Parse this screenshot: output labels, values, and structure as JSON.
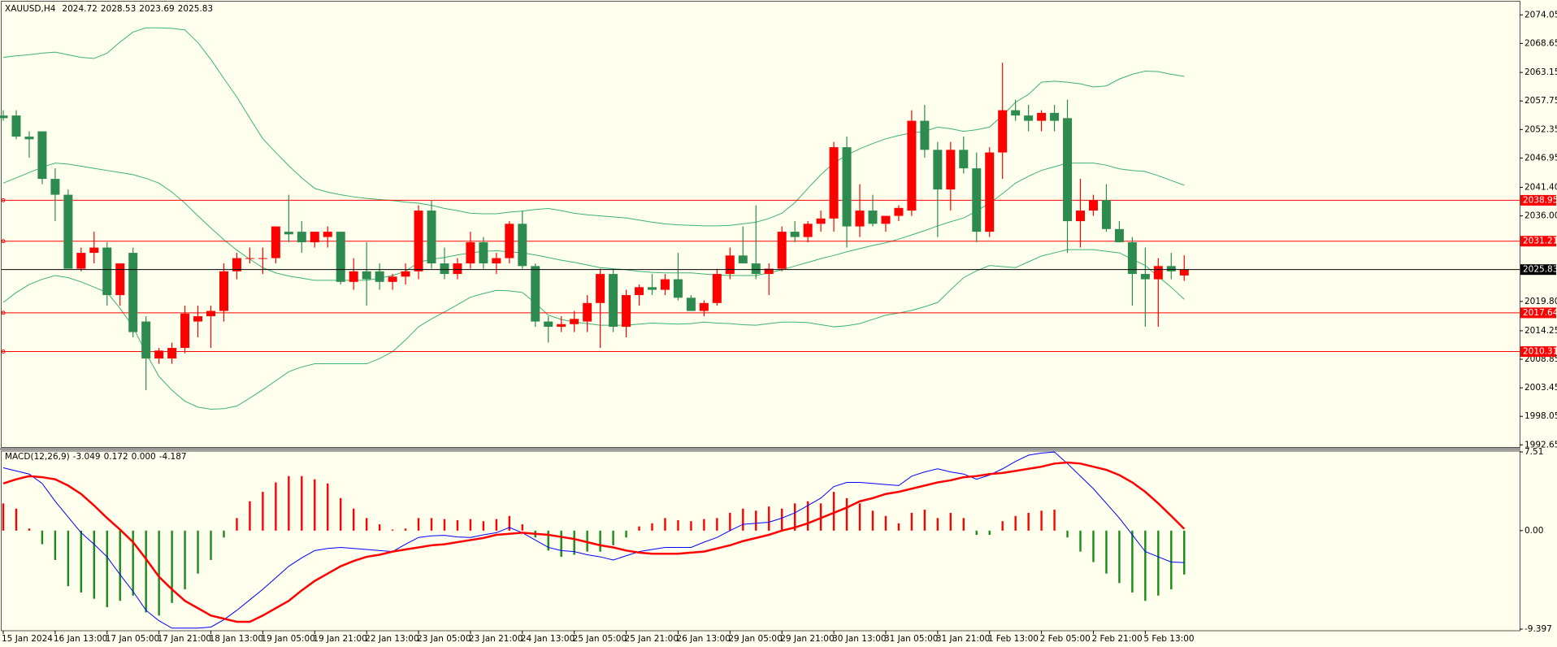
{
  "chart_data": [
    {
      "type": "candlestick",
      "title": "XAUUSD,H4",
      "categories": [
        "15 Jan 2024",
        null,
        null,
        null,
        "16 Jan 13:00",
        null,
        null,
        null,
        "17 Jan 05:00",
        null,
        null,
        null,
        "17 Jan 21:00",
        null,
        null,
        null,
        "18 Jan 13:00",
        null,
        null,
        null,
        "19 Jan 05:00",
        null,
        null,
        null,
        "19 Jan 21:00",
        null,
        null,
        null,
        "22 Jan 13:00",
        null,
        null,
        null,
        "23 Jan 05:00",
        null,
        null,
        null,
        "23 Jan 21:00",
        null,
        null,
        null,
        "24 Jan 13:00",
        null,
        null,
        null,
        "25 Jan 05:00",
        null,
        null,
        null,
        "25 Jan 21:00",
        null,
        null,
        null,
        "26 Jan 13:00",
        null,
        null,
        null,
        "29 Jan 05:00",
        null,
        null,
        null,
        "29 Jan 21:00",
        null,
        null,
        null,
        "30 Jan 13:00",
        null,
        null,
        null,
        "31 Jan 05:00",
        null,
        null,
        null,
        "31 Jan 21:00",
        null,
        null,
        null,
        "1 Feb 13:00",
        null,
        null,
        null,
        "2 Feb 05:00",
        null,
        null,
        null,
        "2 Feb 21:00",
        null,
        null,
        null,
        "5 Feb 13:00",
        null,
        null,
        null
      ],
      "open": [
        2055,
        2055,
        2051,
        2052,
        2043,
        2040,
        2026,
        2029,
        2030,
        2021,
        2029,
        2016,
        2009,
        2009,
        2011,
        2016,
        2017,
        2018,
        2025.5,
        2028,
        2028,
        2028,
        2033,
        2033,
        2031,
        2032,
        2033,
        2023.5,
        2025.5,
        2025.5,
        2023.5,
        2024.5,
        2025.5,
        2037,
        2027,
        2025,
        2027,
        2031,
        2027,
        2028,
        2034.5,
        2026.5,
        2016,
        2015,
        2015.5,
        2016,
        2019.5,
        2025,
        2015,
        2021,
        2022.5,
        2022,
        2024,
        2020.5,
        2018,
        2019.5,
        2025,
        2028.5,
        2027,
        2025,
        2026,
        2033,
        2032,
        2034.5,
        2035.5,
        2049,
        2034,
        2037,
        2034.5,
        2036,
        2037,
        2054,
        2048.5,
        2041,
        2048.5,
        2045,
        2033,
        2048,
        2056,
        2055,
        2054,
        2055.5,
        2054.5,
        2035,
        2037,
        2039,
        2033.5,
        2031,
        2025,
        2024,
        2026.5,
        2024.72
      ],
      "high": [
        2056,
        2056,
        2052,
        2052,
        2045,
        2041,
        2030,
        2033,
        2031,
        2027,
        2030,
        2017,
        2011,
        2012,
        2019,
        2019,
        2019,
        2027,
        2029,
        2030,
        2030,
        2034,
        2040,
        2035,
        2033,
        2034,
        2033,
        2028,
        2031,
        2027,
        2025,
        2027,
        2038,
        2039,
        2030,
        2028,
        2033,
        2032,
        2029,
        2035,
        2037,
        2027,
        2017,
        2017,
        2018,
        2021,
        2026,
        2026,
        2022,
        2023,
        2025,
        2025,
        2029,
        2021,
        2020,
        2026,
        2030,
        2034,
        2038,
        2027,
        2034,
        2035,
        2035,
        2037,
        2050,
        2051,
        2042,
        2040,
        2036,
        2038,
        2056,
        2057,
        2050,
        2050,
        2051,
        2048,
        2049,
        2065,
        2058,
        2057,
        2056,
        2057,
        2058,
        2043,
        2040,
        2042,
        2035,
        2032,
        2030,
        2028,
        2029,
        2028.53
      ],
      "low": [
        2054,
        2050.5,
        2047,
        2042,
        2035,
        2026,
        2025.5,
        2027,
        2019,
        2019,
        2013,
        2003,
        2008,
        2008,
        2010,
        2013,
        2011,
        2016,
        2024,
        2027,
        2025,
        2027,
        2031,
        2029,
        2030,
        2030,
        2023,
        2022,
        2019,
        2022,
        2022,
        2023,
        2024,
        2026,
        2024,
        2024,
        2026,
        2026,
        2025,
        2027,
        2026,
        2015,
        2012,
        2014,
        2014,
        2014,
        2011,
        2014,
        2013,
        2019,
        2021,
        2021,
        2020,
        2018,
        2017,
        2019,
        2024,
        2027,
        2024,
        2021,
        2025.5,
        2031,
        2031,
        2033,
        2033,
        2030,
        2032,
        2034,
        2033,
        2035,
        2036,
        2047,
        2032,
        2037,
        2044,
        2031,
        2032,
        2043,
        2054,
        2052,
        2052,
        2052,
        2029,
        2030,
        2036,
        2033,
        2031,
        2019,
        2015,
        2015,
        2024,
        2023.69
      ],
      "close": [
        2054.5,
        2051,
        2050.5,
        2043,
        2040,
        2026,
        2029,
        2030,
        2021,
        2027,
        2014,
        2009,
        2010.5,
        2011,
        2017.5,
        2017,
        2018,
        2025.5,
        2028,
        2028,
        2028,
        2034,
        2032.5,
        2031,
        2033,
        2033,
        2023.5,
        2025.5,
        2024,
        2023.5,
        2024.5,
        2025.5,
        2037,
        2027,
        2025,
        2027,
        2031,
        2027,
        2028,
        2034.5,
        2026.5,
        2016,
        2015,
        2015.5,
        2016.5,
        2019.5,
        2025,
        2015,
        2021,
        2022.5,
        2022,
        2024,
        2020.5,
        2018,
        2019.5,
        2025,
        2028.5,
        2027,
        2025,
        2026,
        2033,
        2032,
        2034.5,
        2035.5,
        2049,
        2034,
        2037,
        2034.5,
        2036,
        2037.5,
        2054,
        2048.5,
        2041,
        2048.5,
        2045,
        2033,
        2048,
        2056,
        2055,
        2054,
        2055.5,
        2054,
        2035,
        2037,
        2039,
        2033.5,
        2031,
        2025,
        2024,
        2026.5,
        2025.5,
        2025.83
      ],
      "up_color": "#ff0000",
      "down_color": "#2e8b4f",
      "bands": [
        {
          "color": "#3cb371",
          "values": [
            2066.0,
            2066.3,
            2066.5,
            2066.8,
            2067.0,
            2066.5,
            2066.0,
            2065.8,
            2066.8,
            2068.9,
            2070.8,
            2071.6,
            2071.6,
            2071.5,
            2071.2,
            2068.8,
            2065.6,
            2062.0,
            2058.5,
            2054.5,
            2050.6,
            2048.0,
            2045.5,
            2043.2,
            2041.2,
            2040.5,
            2040.0,
            2039.6,
            2039.3,
            2039.1,
            2038.9,
            2038.6,
            2038.4,
            2038.0,
            2037.4,
            2037.0,
            2036.5,
            2036.4,
            2036.4,
            2036.7,
            2036.9,
            2037.2,
            2037.4,
            2037.0,
            2036.5,
            2036.2,
            2036.0,
            2035.8,
            2035.6,
            2035.2,
            2034.8,
            2034.5,
            2034.3,
            2034.2,
            2034.1,
            2034.1,
            2034.2,
            2034.5,
            2034.8,
            2035.5,
            2036.5,
            2038.5,
            2041.2,
            2043.8,
            2046.0,
            2047.5,
            2048.7,
            2049.7,
            2050.6,
            2051.2,
            2051.7,
            2052.0,
            2052.8,
            2052.5,
            2052.0,
            2052.3,
            2052.8,
            2055.0,
            2057.5,
            2059.0,
            2061.3,
            2061.5,
            2061.3,
            2061.0,
            2060.4,
            2060.6,
            2061.9,
            2062.8,
            2063.4,
            2063.3,
            2062.8,
            2062.4
          ]
        },
        {
          "color": "#3cb371",
          "values": [
            2042.2,
            2043.2,
            2044.2,
            2045.2,
            2046.0,
            2045.8,
            2045.4,
            2045.0,
            2044.6,
            2044.2,
            2043.8,
            2043.1,
            2042.2,
            2040.5,
            2038.4,
            2036.0,
            2033.7,
            2031.5,
            2029.5,
            2027.8,
            2026.2,
            2025.2,
            2024.6,
            2024.2,
            2023.8,
            2023.8,
            2023.8,
            2023.8,
            2023.8,
            2024.2,
            2024.7,
            2025.5,
            2027.2,
            2027.8,
            2028.1,
            2028.6,
            2029.0,
            2029.3,
            2029.4,
            2029.2,
            2029.0,
            2028.6,
            2028.1,
            2027.6,
            2027.2,
            2026.7,
            2026.2,
            2026.0,
            2025.8,
            2025.5,
            2025.3,
            2025.2,
            2025.2,
            2025.2,
            2025.0,
            2024.8,
            2024.7,
            2024.7,
            2024.7,
            2025.2,
            2025.8,
            2026.5,
            2027.2,
            2027.9,
            2028.5,
            2029.2,
            2029.8,
            2030.4,
            2030.9,
            2031.6,
            2032.4,
            2033.2,
            2034.1,
            2034.9,
            2035.6,
            2036.9,
            2038.4,
            2040.2,
            2042.2,
            2043.5,
            2044.6,
            2045.3,
            2046.0,
            2046.0,
            2046.0,
            2045.6,
            2044.9,
            2044.6,
            2044.4,
            2043.6,
            2042.7,
            2041.8
          ]
        },
        {
          "color": "#3cb371",
          "values": [
            2019.6,
            2021.5,
            2023.0,
            2024.0,
            2024.7,
            2024.3,
            2023.5,
            2022.5,
            2021.5,
            2018.5,
            2015.0,
            2010.0,
            2005.6,
            2003.0,
            2000.9,
            1999.8,
            1999.4,
            1999.5,
            2000.0,
            2001.5,
            2003.1,
            2004.8,
            2006.5,
            2007.4,
            2008.0,
            2008.0,
            2008.0,
            2008.0,
            2008.0,
            2009.0,
            2010.3,
            2012.5,
            2015.0,
            2016.5,
            2017.8,
            2019.2,
            2020.6,
            2021.3,
            2021.9,
            2021.8,
            2021.5,
            2019.5,
            2017.2,
            2016.4,
            2015.9,
            2015.6,
            2015.3,
            2015.3,
            2015.3,
            2015.5,
            2015.7,
            2015.6,
            2015.5,
            2015.6,
            2015.9,
            2015.7,
            2015.6,
            2015.4,
            2015.3,
            2015.6,
            2015.9,
            2015.9,
            2015.8,
            2015.4,
            2015.0,
            2015.2,
            2015.6,
            2016.4,
            2017.2,
            2017.6,
            2018.1,
            2018.8,
            2019.6,
            2022.0,
            2024.3,
            2025.6,
            2026.6,
            2026.4,
            2026.2,
            2027.3,
            2028.4,
            2029.0,
            2029.6,
            2029.6,
            2029.6,
            2029.3,
            2029.0,
            2027.8,
            2026.6,
            2024.5,
            2022.5,
            2020.2
          ]
        }
      ],
      "levels": [
        {
          "value": 2038.95,
          "color": "#ff0000"
        },
        {
          "value": 2031.21,
          "color": "#ff0000"
        },
        {
          "value": 2017.64,
          "color": "#ff0000"
        },
        {
          "value": 2010.31,
          "color": "#ff0000"
        }
      ],
      "price_line_color": "#000000",
      "ylim": [
        1992.39,
        2076.25
      ],
      "yticks": [
        2074.05,
        {
          "value": 2068.65,
          "label": "2068.65"
        },
        2063.15,
        2057.75,
        2052.35,
        2046.95,
        {
          "value": 2041.4,
          "label": "2041.40"
        },
        {
          "value": 2036,
          "label": "2036.00"
        },
        {
          "value": 2019.8,
          "label": "2019.80"
        },
        2014.25,
        2008.85,
        2003.45,
        1998.05,
        1992.65
      ]
    },
    {
      "type": "macd",
      "title": "MACD(12,26,9)",
      "values": [
        2.6,
        2.1,
        0.2,
        -1.3,
        -2.8,
        -5.3,
        -5.9,
        -6.5,
        -7.3,
        -6.7,
        -6.2,
        -7.8,
        -8.1,
        -6.9,
        -5.6,
        -4.1,
        -2.8,
        -0.65,
        1.2,
        2.8,
        3.7,
        4.6,
        5.2,
        5.2,
        4.9,
        4.5,
        3.1,
        2.1,
        1.2,
        0.6,
        0.1,
        0.2,
        1.2,
        1.2,
        1.1,
        1.0,
        1.1,
        0.9,
        1.1,
        1.4,
        0.6,
        -0.65,
        -1.9,
        -2.5,
        -2.3,
        -2.0,
        -2.0,
        -1.4,
        -0.65,
        0.4,
        0.7,
        1.2,
        1.0,
        0.9,
        1.1,
        1.2,
        1.7,
        2.1,
        1.9,
        2.3,
        2.1,
        2.6,
        2.8,
        2.6,
        3.7,
        3.1,
        2.6,
        1.9,
        1.4,
        0.7,
        1.7,
        2.0,
        1.2,
        1.7,
        1.2,
        -0.4,
        -0.4,
        0.9,
        1.4,
        1.7,
        1.9,
        2.0,
        -0.65,
        -2.0,
        -3.0,
        -4.1,
        -5.0,
        -5.9,
        -6.7,
        -6.2,
        -5.6,
        -4.187
      ],
      "up_color": "#ff0000",
      "down_color": "#1a8a1a",
      "lines": [
        {
          "color": "#0000ff",
          "width": 1,
          "values": [
            6.0,
            5.7,
            5.4,
            4.5,
            2.8,
            1.3,
            -0.2,
            -1.3,
            -2.5,
            -4.2,
            -5.8,
            -7.6,
            -8.6,
            -9.3,
            -9.3,
            -9.3,
            -9.2,
            -8.5,
            -7.6,
            -6.6,
            -5.6,
            -4.5,
            -3.4,
            -2.6,
            -1.9,
            -1.7,
            -1.6,
            -1.7,
            -1.8,
            -1.9,
            -2.0,
            -1.3,
            -0.65,
            -0.5,
            -0.45,
            -0.6,
            -0.65,
            -0.4,
            -0.2,
            0.3,
            -0.2,
            -0.9,
            -1.6,
            -1.9,
            -2.0,
            -2.3,
            -2.5,
            -2.8,
            -2.4,
            -2.0,
            -1.8,
            -1.6,
            -1.6,
            -1.6,
            -1.1,
            -0.65,
            0.0,
            0.6,
            0.7,
            0.8,
            1.2,
            1.7,
            2.4,
            3.1,
            4.2,
            4.6,
            4.6,
            4.5,
            4.4,
            4.3,
            5.2,
            5.6,
            5.9,
            5.6,
            5.4,
            4.9,
            5.3,
            5.9,
            6.6,
            7.2,
            7.4,
            7.5,
            6.4,
            5.2,
            4.0,
            2.6,
            1.2,
            -0.4,
            -2.0,
            -2.5,
            -3.0,
            -3.049
          ]
        },
        {
          "color": "#ff0000",
          "width": 2.5,
          "values": [
            4.5,
            4.9,
            5.2,
            5.1,
            4.9,
            4.3,
            3.5,
            2.4,
            1.2,
            0.1,
            -1.1,
            -2.7,
            -4.4,
            -5.6,
            -6.7,
            -7.4,
            -8.1,
            -8.4,
            -8.7,
            -8.7,
            -8.1,
            -7.4,
            -6.7,
            -5.7,
            -4.8,
            -4.1,
            -3.4,
            -2.9,
            -2.5,
            -2.3,
            -2.0,
            -1.8,
            -1.6,
            -1.4,
            -1.3,
            -1.1,
            -0.9,
            -0.7,
            -0.4,
            -0.3,
            -0.2,
            -0.3,
            -0.4,
            -0.6,
            -0.8,
            -1.1,
            -1.4,
            -1.6,
            -1.9,
            -2.1,
            -2.2,
            -2.2,
            -2.2,
            -2.1,
            -2.0,
            -1.7,
            -1.4,
            -1.0,
            -0.7,
            -0.4,
            0.0,
            0.3,
            0.7,
            1.2,
            1.7,
            2.2,
            2.8,
            3.1,
            3.5,
            3.7,
            4.0,
            4.3,
            4.6,
            4.8,
            5.1,
            5.2,
            5.4,
            5.5,
            5.7,
            5.9,
            6.1,
            6.4,
            6.5,
            6.4,
            6.1,
            5.8,
            5.3,
            4.6,
            3.7,
            2.6,
            1.4,
            0.172
          ]
        }
      ],
      "extra_value": {
        "value": 0,
        "label": "0.000"
      },
      "ylim": [
        -9.397,
        7.51
      ],
      "yticks": [
        7.51,
        {
          "value": 0,
          "label": "0.00"
        },
        -9.397
      ]
    }
  ]
}
